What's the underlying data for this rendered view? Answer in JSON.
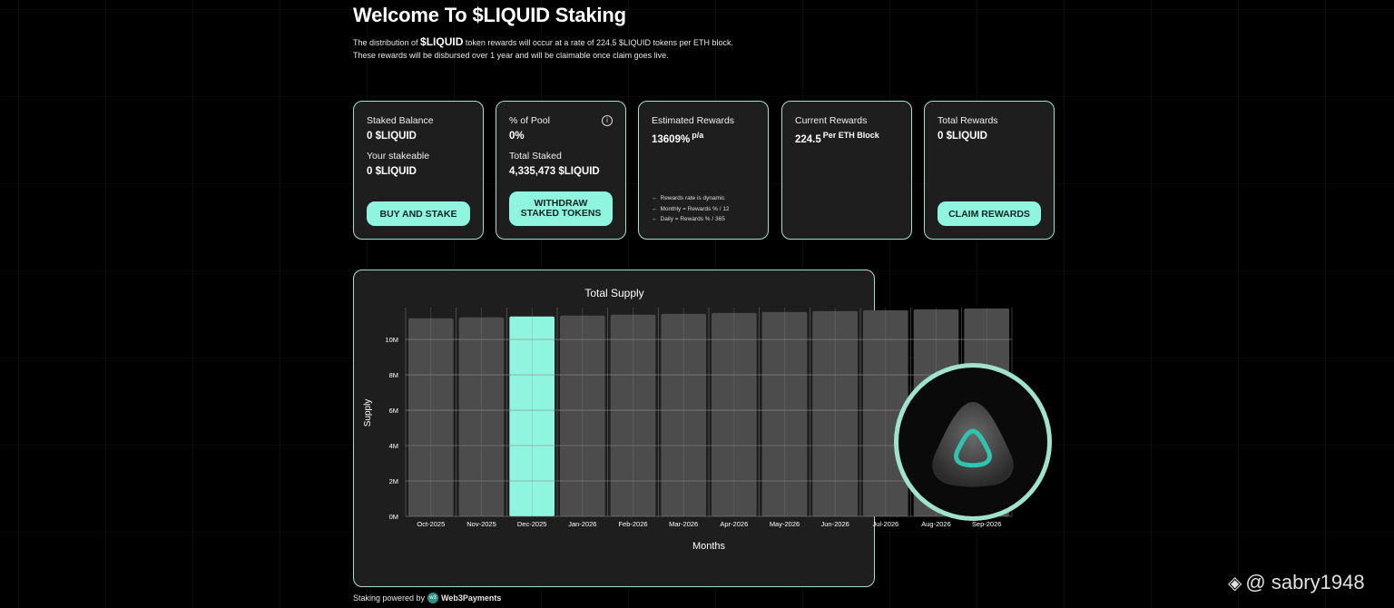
{
  "header": {
    "title": "Welcome To $LIQUID Staking",
    "intro_pre": "The distribution of ",
    "intro_token": "$LIQUID",
    "intro_line1_post": " token rewards will occur at a rate of 224.5 $LIQUID tokens per ETH block.",
    "intro_line2": "These rewards will be disbursed over 1 year and will be claimable once claim goes live."
  },
  "cards": {
    "staked": {
      "label": "Staked Balance",
      "value": "0 $LIQUID",
      "stakeable_label": "Your stakeable",
      "stakeable_value": "0 $LIQUID",
      "button": "BUY AND STAKE"
    },
    "pool": {
      "label": "% of Pool",
      "value": "0%",
      "info_icon": "i",
      "total_label": "Total Staked",
      "total_value": "4,335,473 $LIQUID",
      "button_line1": "WITHDRAW",
      "button_line2": "STAKED TOKENS"
    },
    "estimated": {
      "label": "Estimated Rewards",
      "value": "13609%",
      "suffix": "p/a",
      "notes": [
        "Rewards rate is dynamic",
        "Monthly = Rewards % / 12",
        "Daily = Rewards % / 365"
      ]
    },
    "current": {
      "label": "Current Rewards",
      "value": "224.5",
      "suffix": "Per ETH Block"
    },
    "total": {
      "label": "Total Rewards",
      "value": "0 $LIQUID",
      "button": "CLAIM REWARDS"
    }
  },
  "chart_data": {
    "type": "bar",
    "title": "Total Supply",
    "xlabel": "Months",
    "ylabel": "Supply",
    "categories": [
      "Oct-2025",
      "Nov-2025",
      "Dec-2025",
      "Jan-2026",
      "Feb-2026",
      "Mar-2026",
      "Apr-2026",
      "May-2026",
      "Jun-2026",
      "Jul-2026",
      "Aug-2026",
      "Sep-2026"
    ],
    "values": [
      11.2,
      11.25,
      11.3,
      11.35,
      11.4,
      11.45,
      11.5,
      11.55,
      11.6,
      11.65,
      11.7,
      11.75
    ],
    "highlight_index": 2,
    "yticks": [
      0,
      2,
      4,
      6,
      8,
      10
    ],
    "ytick_labels": [
      "0M",
      "2M",
      "4M",
      "6M",
      "8M",
      "10M"
    ],
    "ylim": [
      0,
      11.8
    ],
    "grid": true,
    "colors": {
      "bar": "#4c4c4c",
      "highlight": "#8ff5de",
      "grid": "#8a8a8a"
    }
  },
  "footer": {
    "text": "Staking powered by",
    "logo": "w3",
    "brand": "Web3Payments"
  },
  "watermark": {
    "icon": "◈",
    "text": "@ sabry1948"
  }
}
